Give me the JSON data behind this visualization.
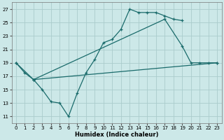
{
  "background_color": "#cce8e8",
  "grid_color": "#aacccc",
  "line_color": "#1a6b6b",
  "xlabel": "Humidex (Indice chaleur)",
  "xlim": [
    -0.5,
    23.5
  ],
  "ylim": [
    10.0,
    28.0
  ],
  "yticks": [
    11,
    13,
    15,
    17,
    19,
    21,
    23,
    25,
    27
  ],
  "xticks": [
    0,
    1,
    2,
    3,
    4,
    5,
    6,
    7,
    8,
    9,
    10,
    11,
    12,
    13,
    14,
    15,
    16,
    17,
    18,
    19,
    20,
    21,
    22,
    23
  ],
  "line1_x": [
    0,
    1,
    2,
    3,
    4,
    5,
    6,
    7,
    8,
    9,
    10,
    11,
    12,
    13,
    14,
    15,
    16,
    17,
    18,
    19
  ],
  "line1_y": [
    19.0,
    17.5,
    16.5,
    15.0,
    13.2,
    13.0,
    11.0,
    14.5,
    17.5,
    19.5,
    22.0,
    22.5,
    24.0,
    27.0,
    26.5,
    26.5,
    26.5,
    26.0,
    25.5,
    25.3
  ],
  "line2_x": [
    0,
    2,
    23
  ],
  "line2_y": [
    19.0,
    16.5,
    19.0
  ],
  "line3_x": [
    2,
    17,
    19,
    20,
    21,
    22,
    23
  ],
  "line3_y": [
    16.5,
    25.5,
    21.5,
    19.0,
    19.0,
    19.0,
    19.0
  ]
}
